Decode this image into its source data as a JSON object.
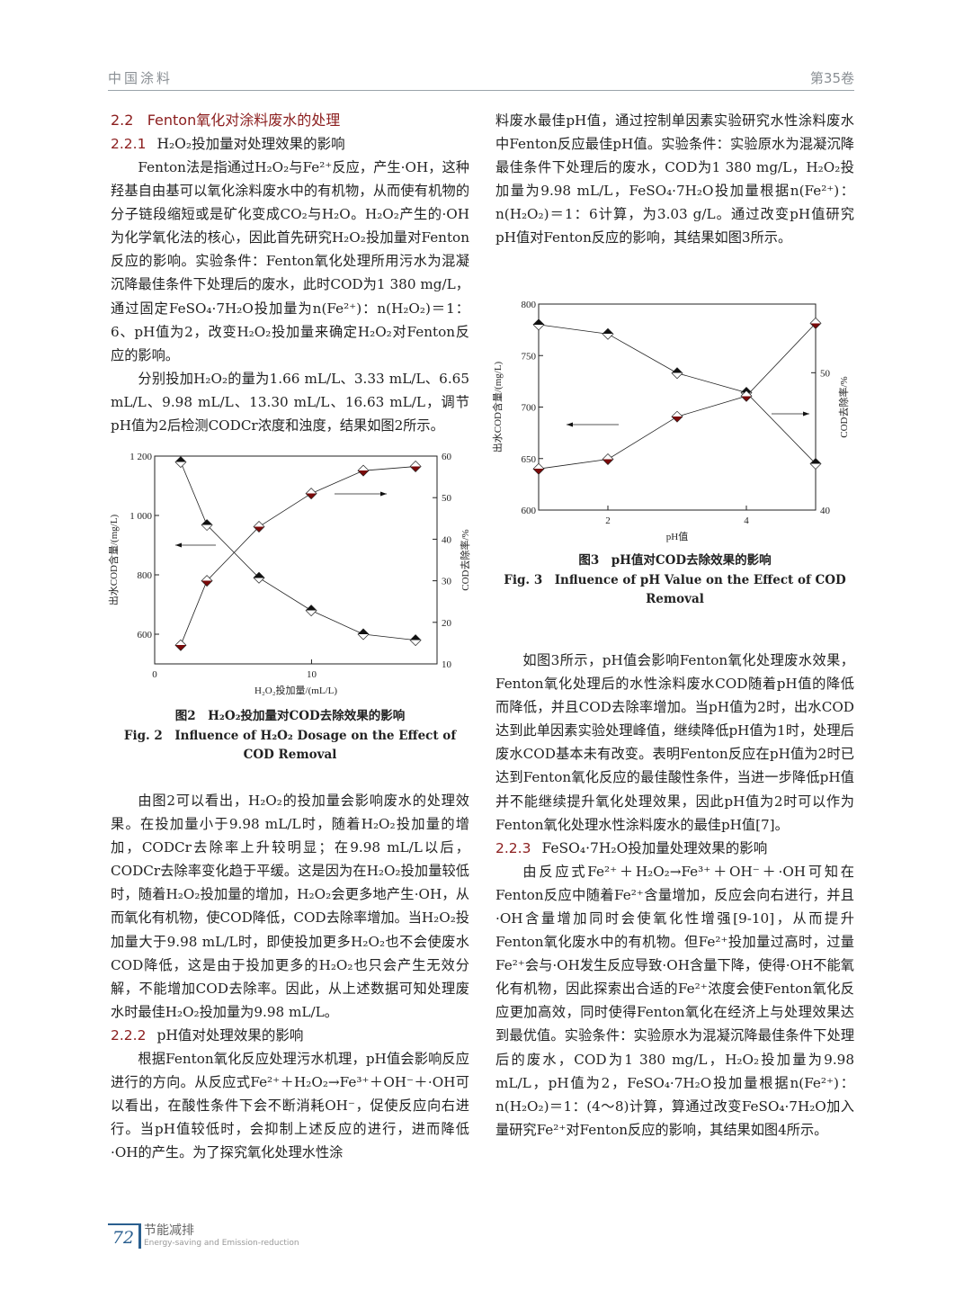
{
  "header": {
    "journal": "中国涂料",
    "volume": "第35卷"
  },
  "left": {
    "h_2_2": {
      "num": "2.2",
      "title": "Fenton氧化对涂料废水的处理"
    },
    "h_2_2_1": {
      "num": "2.2.1",
      "title": "H₂O₂投加量对处理效果的影响"
    },
    "p1": "Fenton法是指通过H₂O₂与Fe²⁺反应，产生·OH，这种羟基自由基可以氧化涂料废水中的有机物，从而使有机物的分子链段缩短或是矿化变成CO₂与H₂O。H₂O₂产生的·OH为化学氧化法的核心，因此首先研究H₂O₂投加量对Fenton反应的影响。实验条件：Fenton氧化处理所用污水为混凝沉降最佳条件下处理后的废水，此时COD为1 380 mg/L，通过固定FeSO₄·7H₂O投加量为n(Fe²⁺)：n(H₂O₂)＝1：6、pH值为2，改变H₂O₂投加量来确定H₂O₂对Fenton反应的影响。",
    "p2": "分别投加H₂O₂的量为1.66 mL/L、3.33 mL/L、6.65 mL/L、9.98 mL/L、13.30 mL/L、16.63 mL/L，调节pH值为2后检测CODCr浓度和浊度，结果如图2所示。",
    "fig2_caption_zh": "图2　H₂O₂投加量对COD去除效果的影响",
    "fig2_caption_en": "Fig. 2　Influence of H₂O₂ Dosage on the Effect of COD Removal",
    "p3": "由图2可以看出，H₂O₂的投加量会影响废水的处理效果。在投加量小于9.98 mL/L时，随着H₂O₂投加量的增加，CODCr去除率上升较明显；在9.98 mL/L以后，CODCr去除率变化趋于平缓。这是因为在H₂O₂投加量较低时，随着H₂O₂投加量的增加，H₂O₂会更多地产生·OH，从而氧化有机物，使COD降低，COD去除率增加。当H₂O₂投加量大于9.98 mL/L时，即使投加更多H₂O₂也不会使废水COD降低，这是由于投加更多的H₂O₂也只会产生无效分解，不能增加COD去除率。因此，从上述数据可知处理废水时最佳H₂O₂投加量为9.98 mL/L。",
    "h_2_2_2": {
      "num": "2.2.2",
      "title": "pH值对处理效果的影响"
    },
    "p4": "根据Fenton氧化反应处理污水机理，pH值会影响反应进行的方向。从反应式Fe²⁺＋H₂O₂→Fe³⁺＋OH⁻＋·OH可以看出，在酸性条件下会不断消耗OH⁻，促使反应向右进行。当pH值较低时，会抑制上述反应的进行，进而降低·OH的产生。为了探究氧化处理水性涂"
  },
  "right": {
    "p1": "料废水最佳pH值，通过控制单因素实验研究水性涂料废水中Fenton反应最佳pH值。实验条件：实验原水为混凝沉降最佳条件下处理后的废水，COD为1 380 mg/L，H₂O₂投加量为9.98 mL/L，FeSO₄·7H₂O投加量根据n(Fe²⁺)：n(H₂O₂)＝1：6计算，为3.03 g/L。通过改变pH值研究pH值对Fenton反应的影响，其结果如图3所示。",
    "fig3_caption_zh": "图3　pH值对COD去除效果的影响",
    "fig3_caption_en": "Fig. 3　Influence of pH Value on the Effect of COD Removal",
    "p2": "如图3所示，pH值会影响Fenton氧化处理废水效果，Fenton氧化处理后的水性涂料废水COD随着pH值的降低而降低，并且COD去除率增加。当pH值为2时，出水COD达到此单因素实验处理峰值，继续降低pH值为1时，处理后废水COD基本未有改变。表明Fenton反应在pH值为2时已达到Fenton氧化反应的最佳酸性条件，当进一步降低pH值并不能继续提升氧化处理效果，因此pH值为2时可以作为Fenton氧化处理水性涂料废水的最佳pH值[7]。",
    "h_2_2_3": {
      "num": "2.2.3",
      "title": "FeSO₄·7H₂O投加量处理效果的影响"
    },
    "p3": "由反应式Fe²⁺＋H₂O₂→Fe³⁺＋OH⁻＋·OH可知在Fenton反应中随着Fe²⁺含量增加，反应会向右进行，并且·OH含量增加同时会使氧化性增强[9-10]，从而提升Fenton氧化废水中的有机物。但Fe²⁺投加量过高时，过量Fe²⁺会与·OH发生反应导致·OH含量下降，使得·OH不能氧化有机物，因此探索出合适的Fe²⁺浓度会使Fenton氧化反应更加高效，同时使得Fenton氧化在经济上与处理效果达到最优值。实验条件：实验原水为混凝沉降最佳条件下处理后的废水，COD为1 380 mg/L，H₂O₂投加量为9.98 mL/L，pH值为2，FeSO₄·7H₂O投加量根据n(Fe²⁺)：n(H₂O₂)＝1：(4～8)计算，算通过改变FeSO₄·7H₂O加入量研究Fe²⁺对Fenton反应的影响，其结果如图4所示。"
  },
  "footer": {
    "page": "72",
    "section_zh": "节能减排",
    "section_en": "Energy-saving and Emission-reduction"
  },
  "chart_data": [
    {
      "type": "line",
      "xlabel": "H₂O₂投加量/(mL/L)",
      "ylabel": "出水COD含量/(mg/L)",
      "y2label": "COD去除率/%",
      "xlim": [
        0,
        18
      ],
      "ylim": [
        500,
        1200
      ],
      "y2lim": [
        10,
        60
      ],
      "xticks": [
        "0",
        "10"
      ],
      "xtick_values": [
        0,
        10
      ],
      "yticks": [
        "600",
        "800",
        "1 000",
        "1 200"
      ],
      "ytick_values": [
        600,
        800,
        1000,
        1200
      ],
      "y2ticks": [
        "10",
        "20",
        "30",
        "40",
        "50",
        "60"
      ],
      "y2tick_values": [
        10,
        20,
        30,
        40,
        50,
        60
      ],
      "x": [
        1.66,
        3.33,
        6.65,
        9.98,
        13.3,
        16.63
      ],
      "series": [
        {
          "axis": "left",
          "values": [
            1180,
            968,
            790,
            680,
            600,
            580
          ],
          "color": "#111111"
        },
        {
          "axis": "right",
          "values": [
            14.5,
            30,
            43,
            51,
            56.5,
            57.5
          ],
          "color": "#7a0a0a"
        }
      ],
      "grid": false
    },
    {
      "type": "line",
      "xlabel": "pH值",
      "ylabel": "出水COD含量/(mg/L)",
      "y2label": "COD去除率/%",
      "xlim": [
        1,
        5
      ],
      "ylim": [
        600,
        800
      ],
      "y2lim": [
        40,
        55
      ],
      "xticks": [
        "2",
        "4"
      ],
      "xtick_values": [
        2,
        4
      ],
      "yticks": [
        "600",
        "650",
        "700",
        "750",
        "800"
      ],
      "ytick_values": [
        600,
        650,
        700,
        750,
        800
      ],
      "y2ticks": [
        "40",
        "50"
      ],
      "y2tick_values": [
        40,
        50
      ],
      "x": [
        1,
        2,
        3,
        4,
        5
      ],
      "series": [
        {
          "axis": "left",
          "values": [
            780,
            771,
            733,
            714,
            645
          ],
          "color": "#111111"
        },
        {
          "axis": "right",
          "values": [
            43,
            43.7,
            46.8,
            48.3,
            53.6
          ],
          "color": "#7a0a0a"
        }
      ],
      "grid": false
    }
  ]
}
